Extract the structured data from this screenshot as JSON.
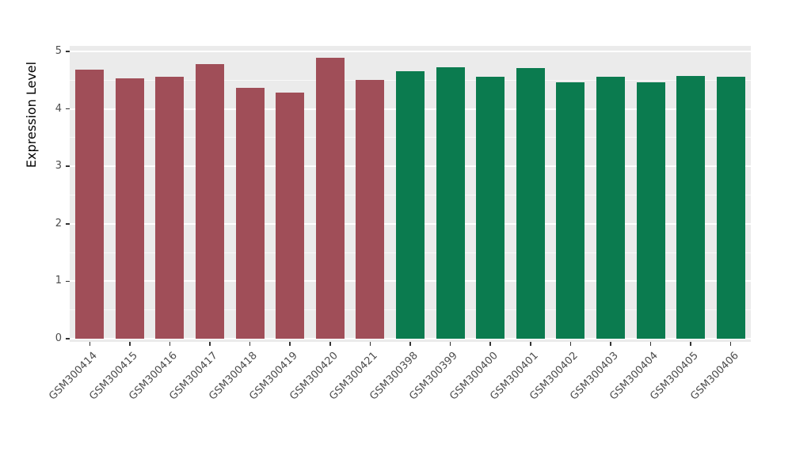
{
  "chart_data": {
    "type": "bar",
    "title": "",
    "xlabel": "",
    "ylabel": "Expression Level",
    "ylim": [
      0,
      5
    ],
    "yticks": [
      0,
      1,
      2,
      3,
      4,
      5
    ],
    "grid": "on",
    "legend": "none",
    "panel_background": "#EBEBEB",
    "gridline_color": "#ffffff",
    "categories": [
      "GSM300414",
      "GSM300415",
      "GSM300416",
      "GSM300417",
      "GSM300418",
      "GSM300419",
      "GSM300420",
      "GSM300421",
      "GSM300398",
      "GSM300399",
      "GSM300400",
      "GSM300401",
      "GSM300402",
      "GSM300403",
      "GSM300404",
      "GSM300405",
      "GSM300406"
    ],
    "values": [
      4.68,
      4.53,
      4.56,
      4.78,
      4.37,
      4.28,
      4.89,
      4.5,
      4.66,
      4.72,
      4.56,
      4.71,
      4.46,
      4.56,
      4.46,
      4.57,
      4.56
    ],
    "bar_colors": [
      "#A04E58",
      "#A04E58",
      "#A04E58",
      "#A04E58",
      "#A04E58",
      "#A04E58",
      "#A04E58",
      "#A04E58",
      "#0B7B4F",
      "#0B7B4F",
      "#0B7B4F",
      "#0B7B4F",
      "#0B7B4F",
      "#0B7B4F",
      "#0B7B4F",
      "#0B7B4F",
      "#0B7B4F"
    ],
    "group_colors": {
      "group1": "#A04E58",
      "group2": "#0B7B4F"
    }
  }
}
